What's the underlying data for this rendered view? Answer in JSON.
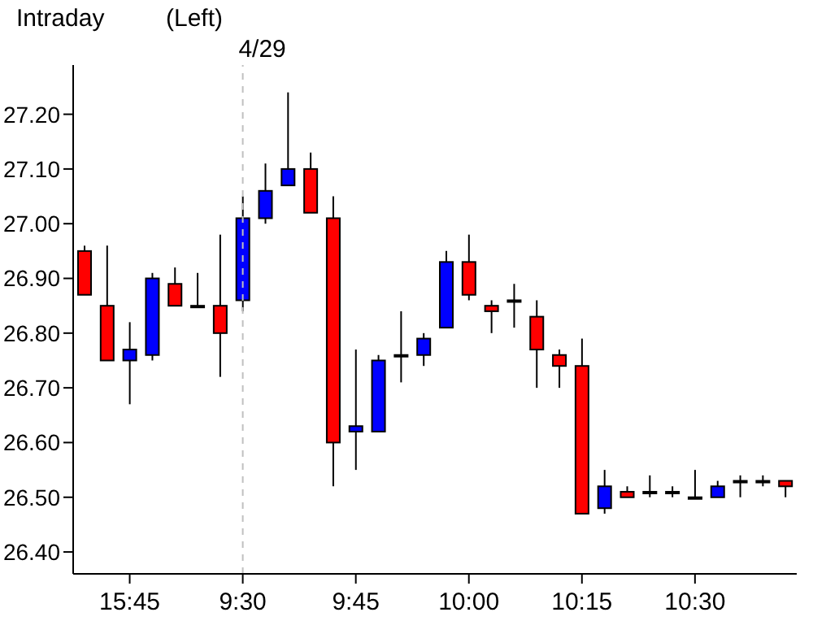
{
  "chart_data": {
    "type": "candlestick",
    "title": "Intraday",
    "annotations": [
      "(Left)"
    ],
    "categories": [
      null,
      null,
      "15:45",
      null,
      null,
      null,
      null,
      "9:30",
      null,
      null,
      null,
      null,
      "9:45",
      null,
      null,
      null,
      null,
      "10:00",
      null,
      null,
      null,
      null,
      "10:15",
      null,
      null,
      null,
      null,
      "10:30",
      null,
      null,
      null,
      null
    ],
    "ohlc": [
      [
        26.95,
        26.96,
        26.87,
        26.87
      ],
      [
        26.85,
        26.96,
        26.75,
        26.75
      ],
      [
        26.75,
        26.82,
        26.67,
        26.77
      ],
      [
        26.76,
        26.91,
        26.75,
        26.9
      ],
      [
        26.89,
        26.92,
        26.85,
        26.85
      ],
      [
        26.85,
        26.91,
        26.85,
        26.85
      ],
      [
        26.85,
        26.98,
        26.72,
        26.8
      ],
      [
        26.86,
        27.05,
        26.84,
        27.01
      ],
      [
        27.01,
        27.11,
        27.0,
        27.06
      ],
      [
        27.07,
        27.24,
        27.07,
        27.1
      ],
      [
        27.1,
        27.13,
        27.02,
        27.02
      ],
      [
        27.01,
        27.05,
        26.52,
        26.6
      ],
      [
        26.62,
        26.77,
        26.55,
        26.63
      ],
      [
        26.62,
        26.76,
        26.62,
        26.75
      ],
      [
        26.76,
        26.84,
        26.71,
        26.76
      ],
      [
        26.76,
        26.8,
        26.74,
        26.79
      ],
      [
        26.81,
        26.95,
        26.81,
        26.93
      ],
      [
        26.93,
        26.98,
        26.86,
        26.87
      ],
      [
        26.85,
        26.86,
        26.8,
        26.84
      ],
      [
        26.86,
        26.89,
        26.81,
        26.86
      ],
      [
        26.83,
        26.86,
        26.7,
        26.77
      ],
      [
        26.76,
        26.77,
        26.7,
        26.74
      ],
      [
        26.74,
        26.79,
        26.47,
        26.47
      ],
      [
        26.48,
        26.55,
        26.47,
        26.52
      ],
      [
        26.51,
        26.52,
        26.5,
        26.5
      ],
      [
        26.51,
        26.54,
        26.5,
        26.51
      ],
      [
        26.51,
        26.52,
        26.5,
        26.51
      ],
      [
        26.5,
        26.55,
        26.5,
        26.5
      ],
      [
        26.5,
        26.53,
        26.5,
        26.52
      ],
      [
        26.53,
        26.54,
        26.5,
        26.53
      ],
      [
        26.53,
        26.54,
        26.52,
        26.53
      ],
      [
        26.53,
        26.53,
        26.5,
        26.52
      ]
    ],
    "colors": [
      "#ff0000",
      "#ff0000",
      "#0000ff",
      "#0000ff",
      "#ff0000",
      "#000000",
      "#ff0000",
      "#0000ff",
      "#0000ff",
      "#0000ff",
      "#ff0000",
      "#ff0000",
      "#0000ff",
      "#0000ff",
      "#000000",
      "#0000ff",
      "#0000ff",
      "#ff0000",
      "#ff0000",
      "#000000",
      "#ff0000",
      "#ff0000",
      "#ff0000",
      "#0000ff",
      "#ff0000",
      "#000000",
      "#000000",
      "#000000",
      "#0000ff",
      "#000000",
      "#000000",
      "#ff0000"
    ],
    "ylim": [
      26.36,
      27.29
    ],
    "yticks": [
      {
        "value": 26.4,
        "label": "26.40"
      },
      {
        "value": 26.5,
        "label": "26.50"
      },
      {
        "value": 26.6,
        "label": "26.60"
      },
      {
        "value": 26.7,
        "label": "26.70"
      },
      {
        "value": 26.8,
        "label": "26.80"
      },
      {
        "value": 26.9,
        "label": "26.90"
      },
      {
        "value": 27.0,
        "label": "27.00"
      },
      {
        "value": 27.1,
        "label": "27.10"
      },
      {
        "value": 27.2,
        "label": "27.20"
      }
    ],
    "ref_lines": [
      {
        "axis": "x",
        "value": "9:30",
        "label": "4/29",
        "color": "#c0c0c0",
        "line_style": "dashed"
      }
    ],
    "grid": false,
    "legend": false
  }
}
